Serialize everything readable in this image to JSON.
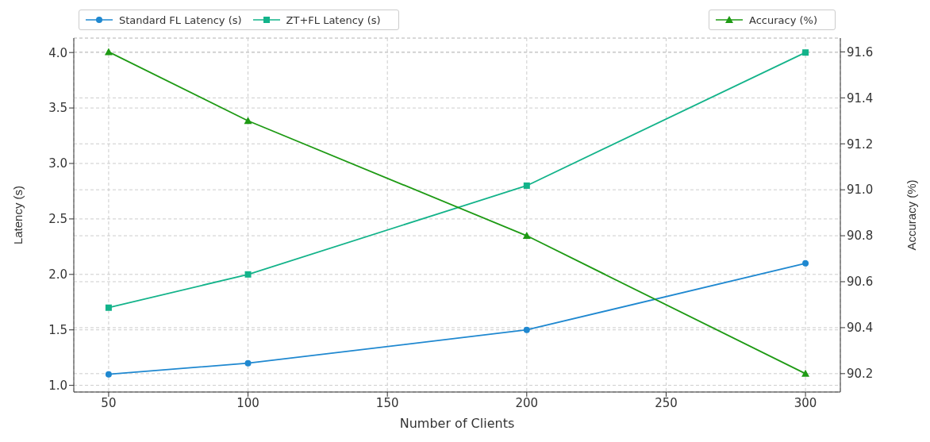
{
  "chart_data": {
    "type": "line",
    "xlabel": "Number of Clients",
    "ylabel": "Latency (s)",
    "y2label": "Accuracy (%)",
    "x": [
      50,
      100,
      200,
      300
    ],
    "series": [
      {
        "name": "Standard FL Latency (s)",
        "color": "#1f88d0",
        "values": [
          1.1,
          1.2,
          1.5,
          2.1
        ],
        "marker": "circle"
      },
      {
        "name": "ZT+FL Latency (s)",
        "color": "#13b38a",
        "values": [
          1.7,
          2.0,
          2.8,
          4.0
        ],
        "marker": "square"
      },
      {
        "name": "Accuracy (%)",
        "color": "#1e9a14",
        "values": [
          91.6,
          91.3,
          90.8,
          90.2
        ],
        "marker": "triangle",
        "axis": "y2"
      }
    ],
    "xlim": [
      37.5,
      312.5
    ],
    "xticks": [
      50,
      100,
      150,
      200,
      250,
      300
    ],
    "ylim": [
      0.94,
      4.13
    ],
    "yticks": [
      {
        "value": 1,
        "label": "1.0"
      },
      1.5,
      {
        "value": 2,
        "label": "2.0"
      },
      2.5,
      {
        "value": 3,
        "label": "3.0"
      },
      3.5,
      {
        "value": 4,
        "label": "4.0"
      }
    ],
    "y2lim": [
      90.12,
      91.66
    ],
    "y2ticks": [
      90.2,
      90.4,
      90.6,
      90.8,
      {
        "value": 91,
        "label": "91.0"
      },
      91.2,
      91.4,
      91.6
    ],
    "grid": true,
    "legend": "top left",
    "line_style": "solid"
  }
}
